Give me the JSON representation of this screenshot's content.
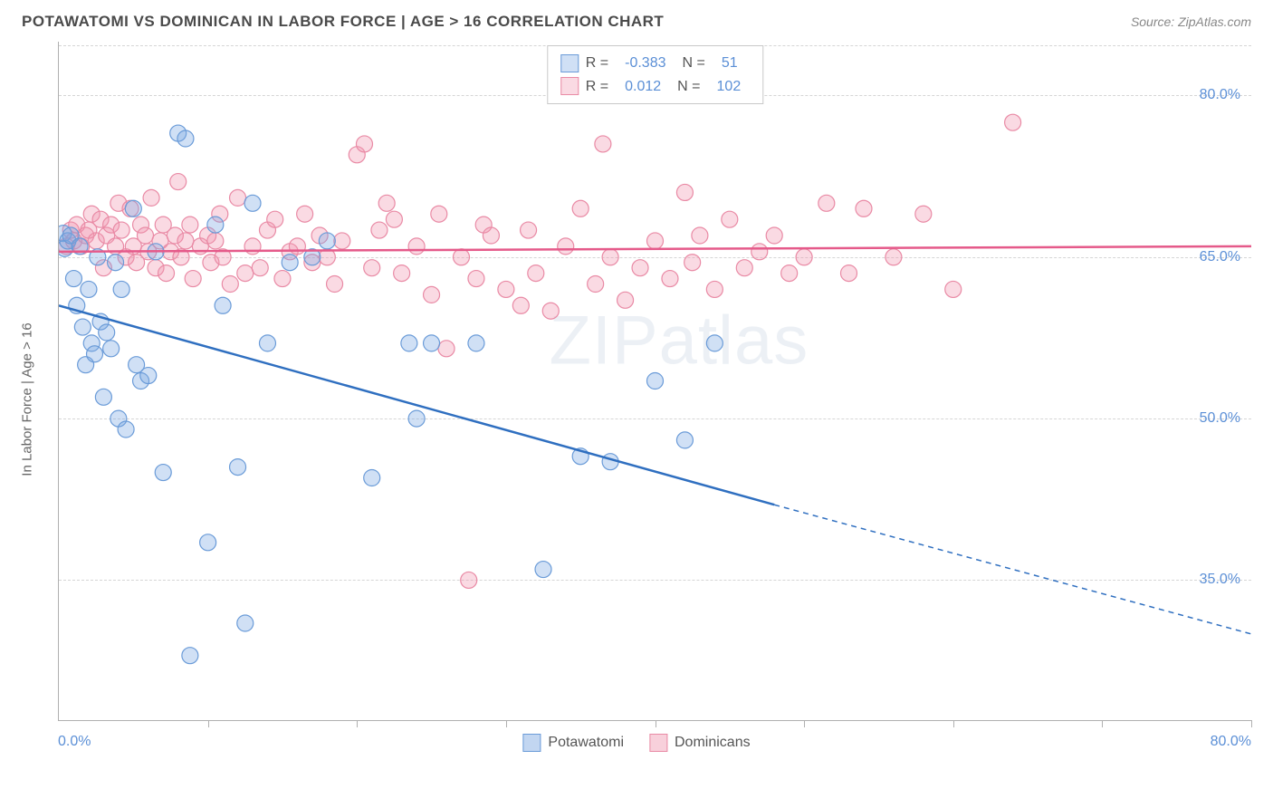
{
  "header": {
    "title": "POTAWATOMI VS DOMINICAN IN LABOR FORCE | AGE > 16 CORRELATION CHART",
    "source": "Source: ZipAtlas.com"
  },
  "watermark": {
    "prefix": "ZIP",
    "suffix": "atlas"
  },
  "chart": {
    "type": "scatter",
    "ylabel": "In Labor Force | Age > 16",
    "xlim": [
      0,
      80
    ],
    "ylim": [
      22,
      85
    ],
    "xticks": [
      0,
      10,
      20,
      30,
      40,
      50,
      60,
      70,
      80
    ],
    "yticks": [
      35.0,
      50.0,
      65.0,
      80.0
    ],
    "ytick_labels": [
      "35.0%",
      "50.0%",
      "65.0%",
      "80.0%"
    ],
    "x_axis_labels": {
      "left": "0.0%",
      "right": "80.0%"
    },
    "background_color": "#ffffff",
    "grid_color": "#d5d5d5",
    "axis_color": "#b0b0b0",
    "marker_radius": 9,
    "marker_stroke_width": 1.2,
    "line_width": 2.5,
    "series": [
      {
        "name": "Potawatomi",
        "fill": "rgba(120,165,225,0.35)",
        "stroke": "#6a9bd8",
        "line_color": "#2f6fc0",
        "R": "-0.383",
        "N": "51",
        "trend": {
          "x1": 0,
          "y1": 60.5,
          "x2": 48,
          "y2": 42.0,
          "x2_dash": 80,
          "y2_dash": 30.0
        },
        "points": [
          [
            0.3,
            67.2
          ],
          [
            0.4,
            65.8
          ],
          [
            0.6,
            66.5
          ],
          [
            0.8,
            67.0
          ],
          [
            1.0,
            63.0
          ],
          [
            1.2,
            60.5
          ],
          [
            1.4,
            66.0
          ],
          [
            1.6,
            58.5
          ],
          [
            1.8,
            55.0
          ],
          [
            2.0,
            62.0
          ],
          [
            2.2,
            57.0
          ],
          [
            2.4,
            56.0
          ],
          [
            2.6,
            65.0
          ],
          [
            2.8,
            59.0
          ],
          [
            3.0,
            52.0
          ],
          [
            3.2,
            58.0
          ],
          [
            3.5,
            56.5
          ],
          [
            3.8,
            64.5
          ],
          [
            4.0,
            50.0
          ],
          [
            4.2,
            62.0
          ],
          [
            4.5,
            49.0
          ],
          [
            5.0,
            69.5
          ],
          [
            5.2,
            55.0
          ],
          [
            5.5,
            53.5
          ],
          [
            6.0,
            54.0
          ],
          [
            6.5,
            65.5
          ],
          [
            7.0,
            45.0
          ],
          [
            8.0,
            76.5
          ],
          [
            8.5,
            76.0
          ],
          [
            8.8,
            28.0
          ],
          [
            10.0,
            38.5
          ],
          [
            10.5,
            68.0
          ],
          [
            11.0,
            60.5
          ],
          [
            12.0,
            45.5
          ],
          [
            12.5,
            31.0
          ],
          [
            13.0,
            70.0
          ],
          [
            14.0,
            57.0
          ],
          [
            15.5,
            64.5
          ],
          [
            17.0,
            65.0
          ],
          [
            18.0,
            66.5
          ],
          [
            21.0,
            44.5
          ],
          [
            23.5,
            57.0
          ],
          [
            24.0,
            50.0
          ],
          [
            25.0,
            57.0
          ],
          [
            28.0,
            57.0
          ],
          [
            32.5,
            36.0
          ],
          [
            35.0,
            46.5
          ],
          [
            37.0,
            46.0
          ],
          [
            40.0,
            53.5
          ],
          [
            42.0,
            48.0
          ],
          [
            44.0,
            57.0
          ]
        ]
      },
      {
        "name": "Dominicans",
        "fill": "rgba(240,150,175,0.35)",
        "stroke": "#e98aa5",
        "line_color": "#e55a8a",
        "R": "0.012",
        "N": "102",
        "trend": {
          "x1": 0,
          "y1": 65.5,
          "x2": 80,
          "y2": 66.0
        },
        "points": [
          [
            0.5,
            66.0
          ],
          [
            0.8,
            67.5
          ],
          [
            1.0,
            66.5
          ],
          [
            1.2,
            68.0
          ],
          [
            1.5,
            66.0
          ],
          [
            1.8,
            67.0
          ],
          [
            2.0,
            67.5
          ],
          [
            2.2,
            69.0
          ],
          [
            2.5,
            66.5
          ],
          [
            2.8,
            68.5
          ],
          [
            3.0,
            64.0
          ],
          [
            3.2,
            67.0
          ],
          [
            3.5,
            68.0
          ],
          [
            3.8,
            66.0
          ],
          [
            4.0,
            70.0
          ],
          [
            4.2,
            67.5
          ],
          [
            4.5,
            65.0
          ],
          [
            4.8,
            69.5
          ],
          [
            5.0,
            66.0
          ],
          [
            5.2,
            64.5
          ],
          [
            5.5,
            68.0
          ],
          [
            5.8,
            67.0
          ],
          [
            6.0,
            65.5
          ],
          [
            6.2,
            70.5
          ],
          [
            6.5,
            64.0
          ],
          [
            6.8,
            66.5
          ],
          [
            7.0,
            68.0
          ],
          [
            7.2,
            63.5
          ],
          [
            7.5,
            65.5
          ],
          [
            7.8,
            67.0
          ],
          [
            8.0,
            72.0
          ],
          [
            8.2,
            65.0
          ],
          [
            8.5,
            66.5
          ],
          [
            8.8,
            68.0
          ],
          [
            9.0,
            63.0
          ],
          [
            9.5,
            66.0
          ],
          [
            10.0,
            67.0
          ],
          [
            10.2,
            64.5
          ],
          [
            10.5,
            66.5
          ],
          [
            10.8,
            69.0
          ],
          [
            11.0,
            65.0
          ],
          [
            11.5,
            62.5
          ],
          [
            12.0,
            70.5
          ],
          [
            12.5,
            63.5
          ],
          [
            13.0,
            66.0
          ],
          [
            13.5,
            64.0
          ],
          [
            14.0,
            67.5
          ],
          [
            14.5,
            68.5
          ],
          [
            15.0,
            63.0
          ],
          [
            15.5,
            65.5
          ],
          [
            16.0,
            66.0
          ],
          [
            16.5,
            69.0
          ],
          [
            17.0,
            64.5
          ],
          [
            17.5,
            67.0
          ],
          [
            18.0,
            65.0
          ],
          [
            18.5,
            62.5
          ],
          [
            19.0,
            66.5
          ],
          [
            20.0,
            74.5
          ],
          [
            20.5,
            75.5
          ],
          [
            21.0,
            64.0
          ],
          [
            21.5,
            67.5
          ],
          [
            22.0,
            70.0
          ],
          [
            22.5,
            68.5
          ],
          [
            23.0,
            63.5
          ],
          [
            24.0,
            66.0
          ],
          [
            25.0,
            61.5
          ],
          [
            25.5,
            69.0
          ],
          [
            26.0,
            56.5
          ],
          [
            27.0,
            65.0
          ],
          [
            28.0,
            63.0
          ],
          [
            28.5,
            68.0
          ],
          [
            29.0,
            67.0
          ],
          [
            30.0,
            62.0
          ],
          [
            31.0,
            60.5
          ],
          [
            31.5,
            67.5
          ],
          [
            32.0,
            63.5
          ],
          [
            33.0,
            60.0
          ],
          [
            34.0,
            66.0
          ],
          [
            35.0,
            69.5
          ],
          [
            36.0,
            62.5
          ],
          [
            36.5,
            75.5
          ],
          [
            37.0,
            65.0
          ],
          [
            38.0,
            61.0
          ],
          [
            39.0,
            64.0
          ],
          [
            40.0,
            66.5
          ],
          [
            41.0,
            63.0
          ],
          [
            42.0,
            71.0
          ],
          [
            42.5,
            64.5
          ],
          [
            43.0,
            67.0
          ],
          [
            44.0,
            62.0
          ],
          [
            45.0,
            68.5
          ],
          [
            46.0,
            64.0
          ],
          [
            47.0,
            65.5
          ],
          [
            48.0,
            67.0
          ],
          [
            49.0,
            63.5
          ],
          [
            50.0,
            65.0
          ],
          [
            51.5,
            70.0
          ],
          [
            53.0,
            63.5
          ],
          [
            54.0,
            69.5
          ],
          [
            56.0,
            65.0
          ],
          [
            58.0,
            69.0
          ],
          [
            60.0,
            62.0
          ],
          [
            64.0,
            77.5
          ],
          [
            27.5,
            35.0
          ]
        ]
      }
    ]
  },
  "bottom_legend": [
    {
      "label": "Potawatomi",
      "fill": "rgba(120,165,225,0.45)",
      "stroke": "#6a9bd8"
    },
    {
      "label": "Dominicans",
      "fill": "rgba(240,150,175,0.45)",
      "stroke": "#e98aa5"
    }
  ]
}
